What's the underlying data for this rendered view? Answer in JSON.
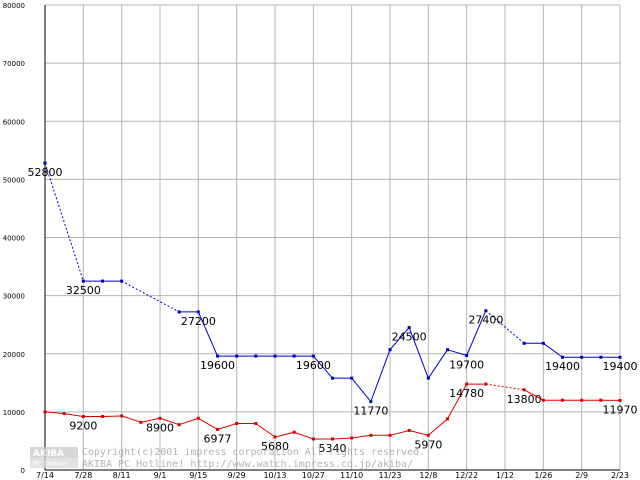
{
  "chart_data": {
    "type": "line",
    "ylim": [
      0,
      80000
    ],
    "yticks": [
      0,
      10000,
      20000,
      30000,
      40000,
      50000,
      60000,
      70000,
      80000
    ],
    "grid": true,
    "x_tick_labels": [
      "7/14",
      "7/28",
      "8/11",
      "9/1",
      "9/15",
      "9/29",
      "10/13",
      "10/27",
      "11/10",
      "11/23",
      "12/8",
      "12/22",
      "1/12",
      "1/26",
      "2/9",
      "2/23"
    ],
    "x_count": 31,
    "series": [
      {
        "color": "#0000cc",
        "values": [
          52800,
          null,
          32500,
          32500,
          32500,
          null,
          null,
          27200,
          27200,
          19600,
          19600,
          19600,
          19600,
          19600,
          19600,
          15800,
          15800,
          11770,
          20700,
          24500,
          15800,
          20700,
          19700,
          27400,
          null,
          21800,
          21800,
          19400,
          19400,
          19400,
          19400
        ],
        "dashed_segments": [
          [
            0,
            2
          ],
          [
            4,
            7
          ],
          [
            23,
            25
          ]
        ]
      },
      {
        "color": "#dd0000",
        "values": [
          10000,
          9700,
          9200,
          9200,
          9300,
          8200,
          8900,
          7800,
          8900,
          6977,
          8000,
          8000,
          5680,
          6500,
          5340,
          5340,
          5500,
          5970,
          5970,
          6800,
          5970,
          8800,
          14780,
          14780,
          null,
          13800,
          12000,
          12000,
          12000,
          12000,
          11970
        ],
        "dashed_segments": [
          [
            23,
            25
          ]
        ]
      }
    ],
    "data_labels": [
      {
        "series": 0,
        "index": 0,
        "text": "52800",
        "pos": "below"
      },
      {
        "series": 0,
        "index": 2,
        "text": "32500",
        "pos": "below"
      },
      {
        "series": 0,
        "index": 8,
        "text": "27200",
        "pos": "below"
      },
      {
        "series": 0,
        "index": 9,
        "text": "19600",
        "pos": "below"
      },
      {
        "series": 0,
        "index": 14,
        "text": "19600",
        "pos": "below"
      },
      {
        "series": 0,
        "index": 17,
        "text": "11770",
        "pos": "below"
      },
      {
        "series": 0,
        "index": 19,
        "text": "24500",
        "pos": "below"
      },
      {
        "series": 0,
        "index": 22,
        "text": "19700",
        "pos": "below"
      },
      {
        "series": 0,
        "index": 23,
        "text": "27400",
        "pos": "below"
      },
      {
        "series": 0,
        "index": 27,
        "text": "19400",
        "pos": "below"
      },
      {
        "series": 0,
        "index": 30,
        "text": "19400",
        "pos": "below"
      },
      {
        "series": 1,
        "index": 2,
        "text": "9200",
        "pos": "below"
      },
      {
        "series": 1,
        "index": 6,
        "text": "8900",
        "pos": "below"
      },
      {
        "series": 1,
        "index": 9,
        "text": "6977",
        "pos": "below"
      },
      {
        "series": 1,
        "index": 12,
        "text": "5680",
        "pos": "below"
      },
      {
        "series": 1,
        "index": 15,
        "text": "5340",
        "pos": "below"
      },
      {
        "series": 1,
        "index": 20,
        "text": "5970",
        "pos": "below"
      },
      {
        "series": 1,
        "index": 22,
        "text": "14780",
        "pos": "below"
      },
      {
        "series": 1,
        "index": 25,
        "text": "13800",
        "pos": "below"
      },
      {
        "series": 1,
        "index": 30,
        "text": "11970",
        "pos": "below"
      }
    ]
  },
  "watermark": {
    "logo_top": "AKIBA",
    "logo_bottom": "PC Online",
    "line1": "Copyright(c)2001 impress corporation All rights reserved.",
    "line2": "AKIBA PC Hotline!  http://www.watch.impress.co.jp/akiba/"
  }
}
